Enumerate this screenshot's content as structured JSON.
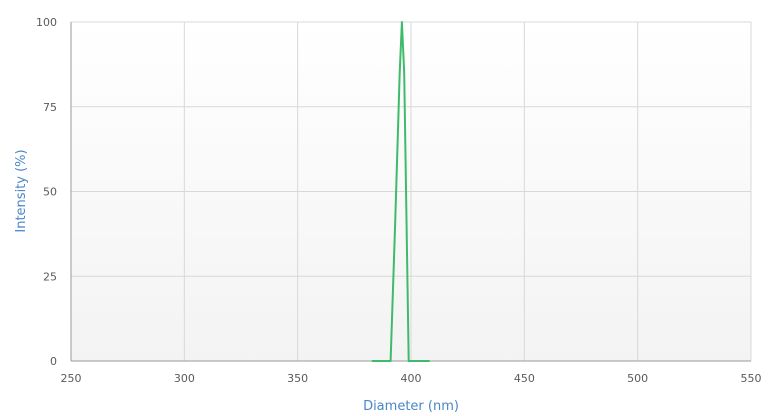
{
  "chart_data": {
    "type": "line",
    "title": "",
    "xlabel": "Diameter (nm)",
    "ylabel": "Intensity (%)",
    "xlim": [
      250,
      550
    ],
    "ylim": [
      0,
      100
    ],
    "x_ticks": [
      250,
      300,
      350,
      400,
      450,
      500,
      550
    ],
    "y_ticks": [
      0,
      25,
      50,
      75,
      100
    ],
    "grid": true,
    "legend": "none",
    "series": [
      {
        "color": "#3dbb6b",
        "x": [
          383,
          391,
          393,
          395,
          396,
          397,
          399,
          401,
          408
        ],
        "y": [
          0,
          0,
          40,
          85,
          100,
          85,
          0,
          0,
          0
        ]
      }
    ],
    "colors": {
      "axis_title": "#4a86c8",
      "tick_label": "#5a5a5a",
      "grid": "#d8d8d8",
      "axis_line": "#9a9a9a",
      "plot_background_top": "#ffffff",
      "plot_background_bottom": "#f3f3f3"
    }
  }
}
